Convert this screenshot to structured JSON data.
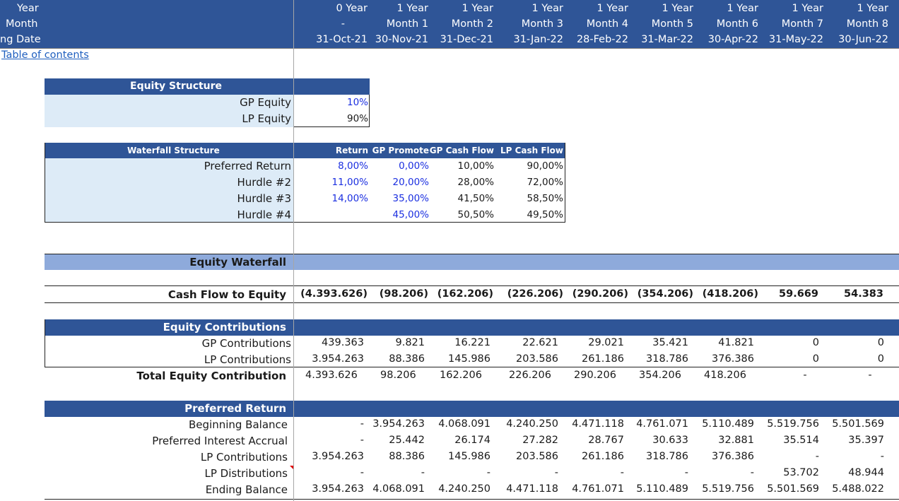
{
  "header": {
    "row_labels": [
      "Year",
      "Month",
      "ng Date"
    ],
    "columns": [
      {
        "year": "0 Year",
        "month": "-",
        "date": "31-Oct-21"
      },
      {
        "year": "1 Year",
        "month": "Month 1",
        "date": "30-Nov-21"
      },
      {
        "year": "1 Year",
        "month": "Month 2",
        "date": "31-Dec-21"
      },
      {
        "year": "1 Year",
        "month": "Month 3",
        "date": "31-Jan-22"
      },
      {
        "year": "1 Year",
        "month": "Month 4",
        "date": "28-Feb-22"
      },
      {
        "year": "1 Year",
        "month": "Month 5",
        "date": "31-Mar-22"
      },
      {
        "year": "1 Year",
        "month": "Month 6",
        "date": "30-Apr-22"
      },
      {
        "year": "1 Year",
        "month": "Month 7",
        "date": "31-May-22"
      },
      {
        "year": "1 Year",
        "month": "Month 8",
        "date": "30-Jun-22"
      }
    ]
  },
  "toc_link": "Table of contents",
  "equity_structure": {
    "title": "Equity Structure",
    "rows": [
      {
        "label": "GP Equity",
        "value": "10%",
        "blue": true
      },
      {
        "label": "LP Equity",
        "value": "90%",
        "blue": false
      }
    ]
  },
  "waterfall_structure": {
    "title": "Waterfall Structure",
    "headers": [
      "Return",
      "GP Promote",
      "GP Cash Flow",
      "LP Cash Flow"
    ],
    "rows": [
      {
        "label": "Preferred Return",
        "cells": [
          "8,00%",
          "0,00%",
          "10,00%",
          "90,00%"
        ],
        "blue": [
          true,
          true,
          false,
          false
        ]
      },
      {
        "label": "Hurdle #2",
        "cells": [
          "11,00%",
          "20,00%",
          "28,00%",
          "72,00%"
        ],
        "blue": [
          true,
          true,
          false,
          false
        ]
      },
      {
        "label": "Hurdle #3",
        "cells": [
          "14,00%",
          "35,00%",
          "41,50%",
          "58,50%"
        ],
        "blue": [
          true,
          true,
          false,
          false
        ]
      },
      {
        "label": "Hurdle #4",
        "cells": [
          "",
          "45,00%",
          "50,50%",
          "49,50%"
        ],
        "blue": [
          false,
          true,
          false,
          false
        ]
      }
    ]
  },
  "equity_waterfall": {
    "title": "Equity Waterfall"
  },
  "cash_flow": {
    "label": "Cash Flow to Equity",
    "values": [
      "(4.393.626)",
      "(98.206)",
      "(162.206)",
      "(226.206)",
      "(290.206)",
      "(354.206)",
      "(418.206)",
      "59.669",
      "54.383"
    ]
  },
  "equity_contributions": {
    "title": "Equity Contributions",
    "rows": [
      {
        "label": "GP Contributions",
        "values": [
          "439.363",
          "9.821",
          "16.221",
          "22.621",
          "29.021",
          "35.421",
          "41.821",
          "0",
          "0"
        ]
      },
      {
        "label": "LP Contributions",
        "values": [
          "3.954.263",
          "88.386",
          "145.986",
          "203.586",
          "261.186",
          "318.786",
          "376.386",
          "0",
          "0"
        ]
      }
    ],
    "total": {
      "label": "Total Equity Contribution",
      "values": [
        "4.393.626",
        "98.206",
        "162.206",
        "226.206",
        "290.206",
        "354.206",
        "418.206",
        "-",
        "-"
      ]
    }
  },
  "preferred_return": {
    "title": "Preferred Return",
    "rows": [
      {
        "label": "Beginning Balance",
        "values": [
          "-",
          "3.954.263",
          "4.068.091",
          "4.240.250",
          "4.471.118",
          "4.761.071",
          "5.110.489",
          "5.519.756",
          "5.501.569"
        ]
      },
      {
        "label": "Preferred Interest Accrual",
        "values": [
          "-",
          "25.442",
          "26.174",
          "27.282",
          "28.767",
          "30.633",
          "32.881",
          "35.514",
          "35.397"
        ]
      },
      {
        "label": "LP Contributions",
        "values": [
          "3.954.263",
          "88.386",
          "145.986",
          "203.586",
          "261.186",
          "318.786",
          "376.386",
          "-",
          "-"
        ]
      },
      {
        "label": "LP Distributions",
        "values": [
          "-",
          "-",
          "-",
          "-",
          "-",
          "-",
          "-",
          "53.702",
          "48.944"
        ]
      },
      {
        "label": "Ending Balance",
        "values": [
          "3.954.263",
          "4.068.091",
          "4.240.250",
          "4.471.118",
          "4.761.071",
          "5.110.489",
          "5.519.756",
          "5.501.569",
          "5.488.022"
        ]
      }
    ]
  },
  "colors": {
    "header_blue": "#2f5597",
    "light_blue": "#ddebf7",
    "band_blue": "#8eaadb",
    "input_blue": "#1b2fe0"
  }
}
